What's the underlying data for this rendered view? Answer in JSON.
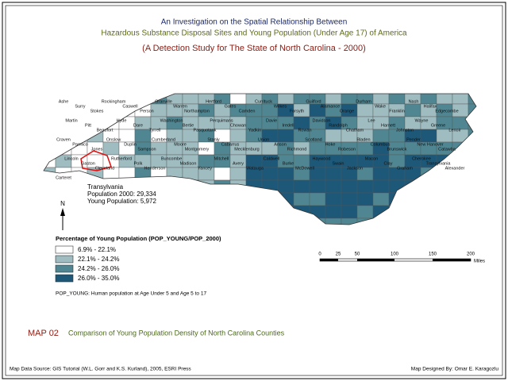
{
  "header": {
    "title_line1": "An Investigation on the Spatial Relationship Between",
    "title_line2": "Hazardous Substance Disposal Sites and Young Population (Under Age 17) of America",
    "subtitle": "(A Detection Study for The State of North Carolina - 2000)"
  },
  "map": {
    "counties": [
      "Ashe",
      "Surry",
      "Stokes",
      "Rockingham",
      "Caswell",
      "Person",
      "Granville",
      "Warren",
      "Northampton",
      "Hertford",
      "Gates",
      "Camden",
      "Currituck",
      "Wilkes",
      "Forsyth",
      "Guilford",
      "Alamance",
      "Orange",
      "Durham",
      "Wake",
      "Franklin",
      "Nash",
      "Halifax",
      "Edgecombe",
      "Martin",
      "Pitt",
      "Beaufort",
      "Hyde",
      "Dare",
      "Tyrrell",
      "Washington",
      "Bertie",
      "Pasquotank",
      "Perquimans",
      "Chowan",
      "Yadkin",
      "Davie",
      "Iredell",
      "Rowan",
      "Davidson",
      "Randolph",
      "Chatham",
      "Lee",
      "Harnett",
      "Johnston",
      "Wayne",
      "Greene",
      "Lenoir",
      "Craven",
      "Pamlico",
      "Jones",
      "Onslow",
      "Duplin",
      "Sampson",
      "Cumberland",
      "Moore",
      "Montgomery",
      "Stanly",
      "Cabarrus",
      "Mecklenburg",
      "Union",
      "Anson",
      "Richmond",
      "Scotland",
      "Hoke",
      "Robeson",
      "Bladen",
      "Columbus",
      "Brunswick",
      "Pender",
      "New Hanover",
      "Catawba",
      "Lincoln",
      "Gaston",
      "Cleveland",
      "Rutherford",
      "Polk",
      "Henderson",
      "Buncombe",
      "Madison",
      "Yancey",
      "Mitchell",
      "Avery",
      "Watauga",
      "Caldwell",
      "Burke",
      "McDowell",
      "Haywood",
      "Swain",
      "Jackson",
      "Macon",
      "Clay",
      "Graham",
      "Cherokee",
      "Transylvania",
      "Alexander",
      "Carteret"
    ],
    "callout": [
      "Transylvania",
      "Population 2000: 29,334",
      "Young Population: 5,972"
    ],
    "north": "N"
  },
  "legend": {
    "title": "Percentage of Young Population (POP_YOUNG/POP_2000)",
    "classes": [
      "6.9% - 22.1%",
      "22.1% - 24.2%",
      "24.2% - 26.0%",
      "26.0% - 35.0%"
    ],
    "note": "POP_YOUNG: Human population at Age Under 5 and Age 5 to 17"
  },
  "scale": {
    "labels": [
      "0",
      "25",
      "50",
      "100",
      "150",
      "200"
    ],
    "unit": "Miles"
  },
  "caption": {
    "map_id": "MAP 02",
    "text": "Comparison of Young Population Density of North Carolina Counties"
  },
  "footer": {
    "source": "Map Data Source: GIS Tutorial (W.L. Gorr and K.S. Kurland), 2005, ESRI Press",
    "credit": "Map Designed By: Omar E. Karagozlu"
  }
}
